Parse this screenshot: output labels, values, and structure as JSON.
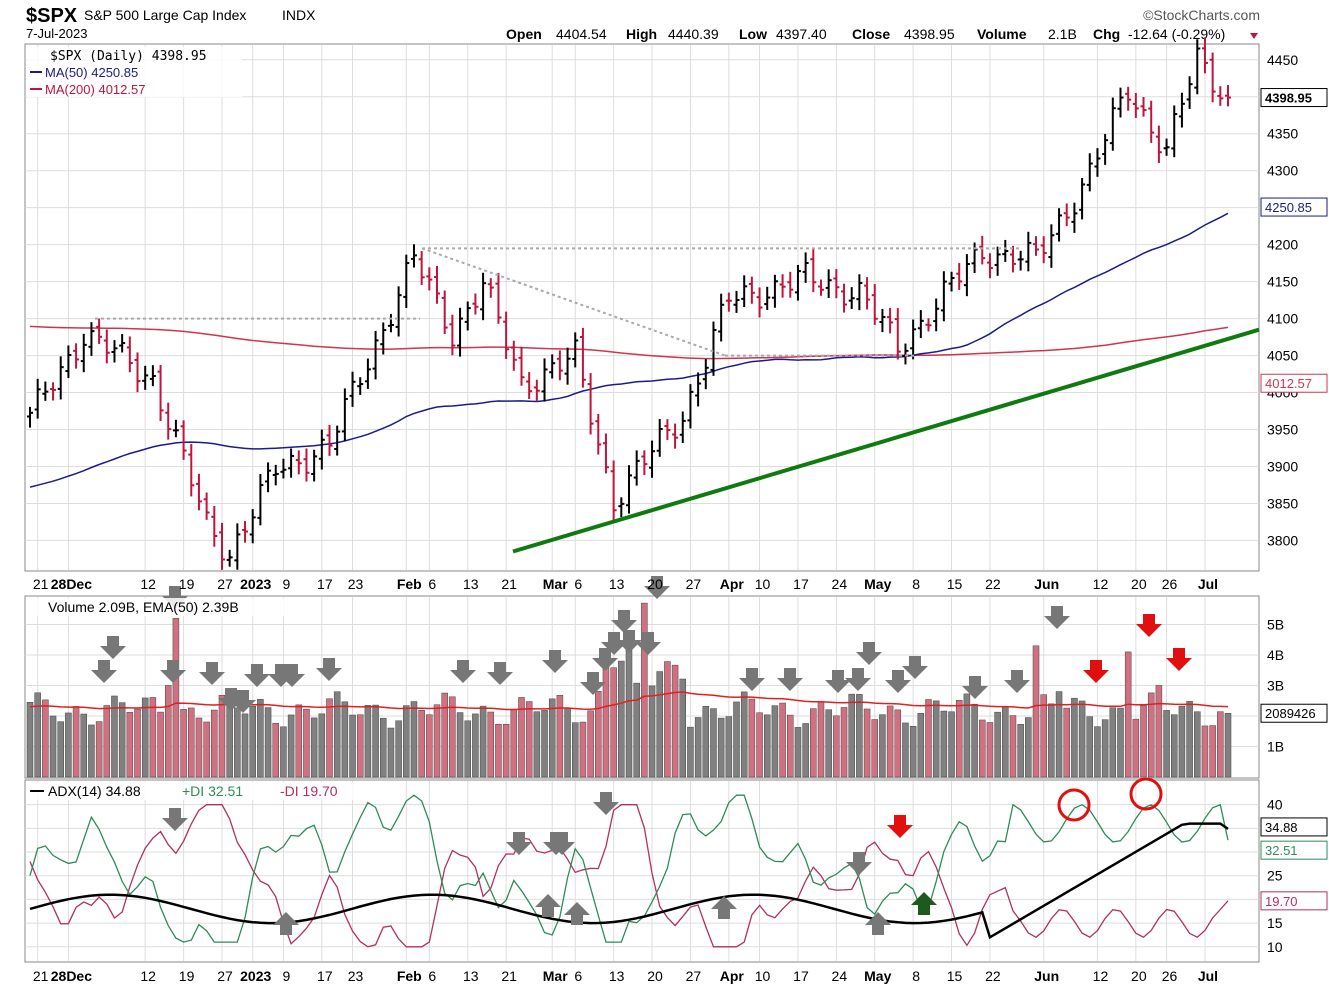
{
  "header": {
    "symbol": "$SPX",
    "name": "S&P 500 Large Cap Index",
    "exchange": "INDX",
    "date": "7-Jul-2023",
    "brand": "©StockCharts.com",
    "open_label": "Open",
    "open": "4404.54",
    "high_label": "High",
    "high": "4440.39",
    "low_label": "Low",
    "low": "4397.40",
    "close_label": "Close",
    "close": "4398.95",
    "volume_label": "Volume",
    "volume": "2.1B",
    "chg_label": "Chg",
    "chg": "-12.64 (-0.29%)"
  },
  "colors": {
    "up": "#000000",
    "down": "#c0143c",
    "ma50": "#1b1b8c",
    "ma200": "#d0344e",
    "trend": "#0f7a0f",
    "adx": "#000000",
    "plus_di": "#2e8b57",
    "minus_di": "#b03060",
    "vol_up": "#808080",
    "vol_down": "#d07080",
    "grid": "#dddddd"
  },
  "price_panel": {
    "legend": [
      "$SPX (Daily) 4398.95",
      "MA(50) 4250.85",
      "MA(200) 4012.57"
    ],
    "y_ticks": [
      "3800",
      "3850",
      "3900",
      "3950",
      "4000",
      "4050",
      "4100",
      "4150",
      "4200",
      "4250",
      "4300",
      "4350",
      "4400",
      "4450"
    ],
    "tag_close": "4398.95",
    "tag_ma50": "4250.85",
    "tag_ma200": "4012.57"
  },
  "volume_panel": {
    "legend": "Volume 2.09B, EMA(50) 2.39B",
    "y_ticks": [
      "1B",
      "2B",
      "3B",
      "4B",
      "5B"
    ],
    "tag": "2089426"
  },
  "adx_panel": {
    "legend_adx": "ADX(14) 34.88",
    "legend_pdi": "+DI 32.51",
    "legend_mdi": "-DI 19.70",
    "y_ticks": [
      "10",
      "15",
      "20",
      "25",
      "30",
      "35",
      "40"
    ],
    "tag_adx": "34.88",
    "tag_pdi": "32.51",
    "tag_mdi": "19.70"
  },
  "x_axis": {
    "labels": [
      "21",
      "28Dec",
      "12",
      "19",
      "27",
      "2023",
      "9",
      "17",
      "23",
      "Feb",
      "6",
      "13",
      "21",
      "Mar",
      "6",
      "13",
      "20",
      "27",
      "Apr",
      "10",
      "17",
      "24",
      "May",
      "8",
      "15",
      "22",
      "Jun",
      "12",
      "20",
      "26",
      "Jul"
    ],
    "bold": [
      "Dec",
      "2023",
      "Feb",
      "Mar",
      "Apr",
      "May",
      "Jun",
      "Jul"
    ]
  },
  "chart_data": {
    "type": "ohlc",
    "title": "$SPX S&P 500 Large Cap Index",
    "ylim": [
      3760,
      4470
    ],
    "series": [
      {
        "name": "$SPX (Daily)",
        "close_path": [
          [
            "2022-11-18",
            3965
          ],
          [
            "2022-11-30",
            4080
          ],
          [
            "2022-12-13",
            4019
          ],
          [
            "2022-12-22",
            3822
          ],
          [
            "2022-12-28",
            3783
          ],
          [
            "2023-01-06",
            3895
          ],
          [
            "2023-01-18",
            3929
          ],
          [
            "2023-02-02",
            4180
          ],
          [
            "2023-02-09",
            4081
          ],
          [
            "2023-02-15",
            4147
          ],
          [
            "2023-02-23",
            4012
          ],
          [
            "2023-03-06",
            4048
          ],
          [
            "2023-03-13",
            3855
          ],
          [
            "2023-03-24",
            3970
          ],
          [
            "2023-04-03",
            4125
          ],
          [
            "2023-04-18",
            4154
          ],
          [
            "2023-04-27",
            4135
          ],
          [
            "2023-05-04",
            4061
          ],
          [
            "2023-05-19",
            4191
          ],
          [
            "2023-05-31",
            4180
          ],
          [
            "2023-06-09",
            4298
          ],
          [
            "2023-06-16",
            4409
          ],
          [
            "2023-06-26",
            4328
          ],
          [
            "2023-06-30",
            4450
          ],
          [
            "2023-07-07",
            4399
          ]
        ]
      },
      {
        "name": "MA(50)",
        "last": 4250.85
      },
      {
        "name": "MA(200)",
        "last": 4012.57
      }
    ],
    "volume_ema50": 2.39,
    "volume_last": 2.09,
    "adx_last": 34.88,
    "plus_di_last": 32.51,
    "minus_di_last": 19.7
  }
}
